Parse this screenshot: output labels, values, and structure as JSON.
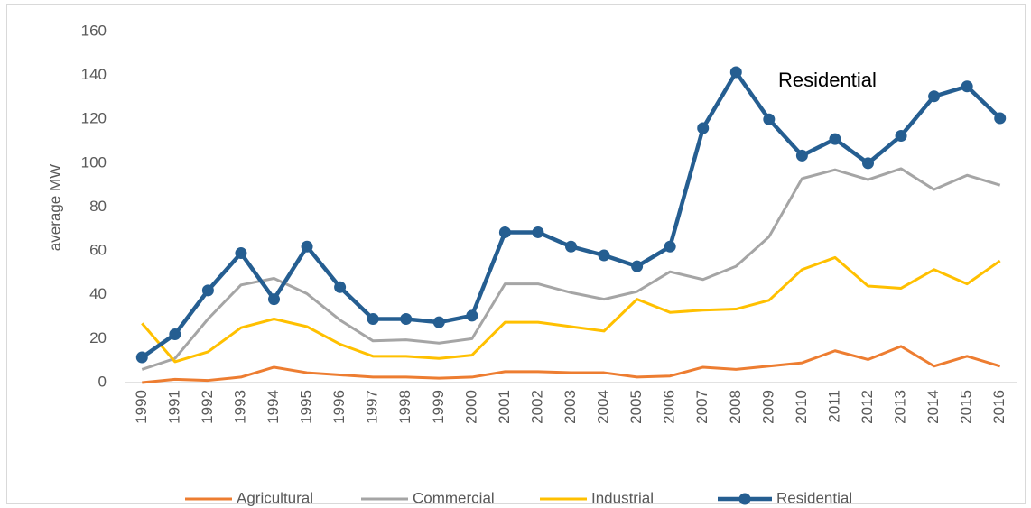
{
  "chart_data": {
    "type": "line",
    "y_label": "average MW",
    "annotation": "Residential",
    "categories": [
      "1990",
      "1991",
      "1992",
      "1993",
      "1994",
      "1995",
      "1996",
      "1997",
      "1998",
      "1999",
      "2000",
      "2001",
      "2002",
      "2003",
      "2004",
      "2005",
      "2006",
      "2007",
      "2008",
      "2009",
      "2010",
      "2011",
      "2012",
      "2013",
      "2014",
      "2015",
      "2016"
    ],
    "ylim": [
      0,
      160
    ],
    "yticks": [
      0,
      20,
      40,
      60,
      80,
      100,
      120,
      140,
      160
    ],
    "grid": false,
    "legend": "bottom",
    "series": [
      {
        "name": "Agricultural",
        "color": "#ed7d31",
        "values": [
          0,
          1.5,
          1,
          2.5,
          7,
          4.5,
          3.5,
          2.5,
          2.5,
          2,
          2.5,
          5,
          5,
          4.5,
          4.5,
          2.5,
          3,
          7,
          6,
          7.5,
          9,
          14.5,
          10.5,
          16.5,
          7.5,
          12,
          7.5
        ]
      },
      {
        "name": "Commercial",
        "color": "#a5a5a5",
        "values": [
          6,
          11,
          29,
          44.5,
          47.5,
          40.5,
          28.5,
          19,
          19.5,
          18,
          20,
          45,
          45,
          41,
          38,
          41.5,
          50.5,
          47,
          53,
          66.5,
          93,
          97,
          92.5,
          97.5,
          88,
          94.5,
          90
        ]
      },
      {
        "name": "Industrial",
        "color": "#ffc000",
        "values": [
          27,
          9.5,
          14,
          25,
          29,
          25.5,
          17.5,
          12,
          12,
          11,
          12.5,
          27.5,
          27.5,
          25.5,
          23.5,
          38,
          32,
          33,
          33.5,
          37.5,
          51.5,
          57,
          44,
          43,
          51.5,
          45,
          55.5
        ]
      },
      {
        "name": "Residential",
        "color": "#255e91",
        "markers": true,
        "values": [
          11.5,
          22,
          42,
          59,
          38,
          62,
          43.5,
          29,
          29,
          27.5,
          30.5,
          68.5,
          68.5,
          62,
          58,
          53,
          62,
          116,
          141.5,
          120,
          103.5,
          111,
          100,
          112.5,
          130.5,
          135,
          120.5
        ]
      }
    ]
  }
}
